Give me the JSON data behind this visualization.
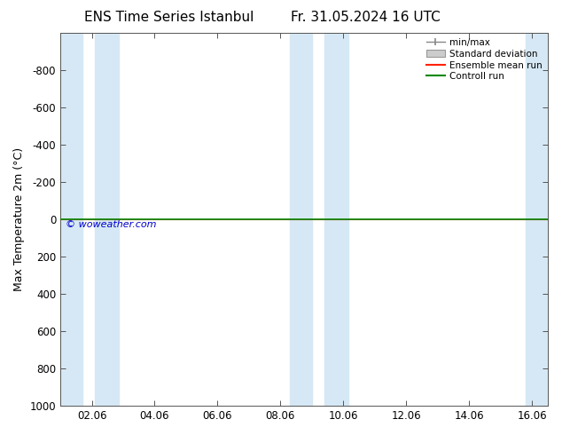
{
  "title": "ENS Time Series Istanbul",
  "title2": "Fr. 31.05.2024 16 UTC",
  "ylabel": "Max Temperature 2m (°C)",
  "ylim": [
    -1000,
    1000
  ],
  "yticks": [
    -800,
    -600,
    -400,
    -200,
    0,
    200,
    400,
    600,
    800,
    1000
  ],
  "xtick_labels": [
    "02.06",
    "04.06",
    "06.06",
    "08.06",
    "10.06",
    "12.06",
    "14.06",
    "16.06"
  ],
  "xtick_positions": [
    1,
    3,
    5,
    7,
    9,
    11,
    13,
    15
  ],
  "xlim": [
    0,
    15.5
  ],
  "shade_bands": [
    [
      0.0,
      0.7
    ],
    [
      1.1,
      1.85
    ],
    [
      7.3,
      8.0
    ],
    [
      8.4,
      9.15
    ],
    [
      14.8,
      15.5
    ]
  ],
  "shade_color": "#d6e8f5",
  "line_y": 0,
  "green_line_color": "#008800",
  "red_line_color": "#ff2200",
  "watermark": "© woweather.com",
  "watermark_color": "#0000cc",
  "legend_items": [
    "min/max",
    "Standard deviation",
    "Ensemble mean run",
    "Controll run"
  ],
  "background_color": "#ffffff",
  "plot_bg_color": "#ffffff",
  "title_fontsize": 11,
  "axis_fontsize": 9,
  "tick_fontsize": 8.5
}
